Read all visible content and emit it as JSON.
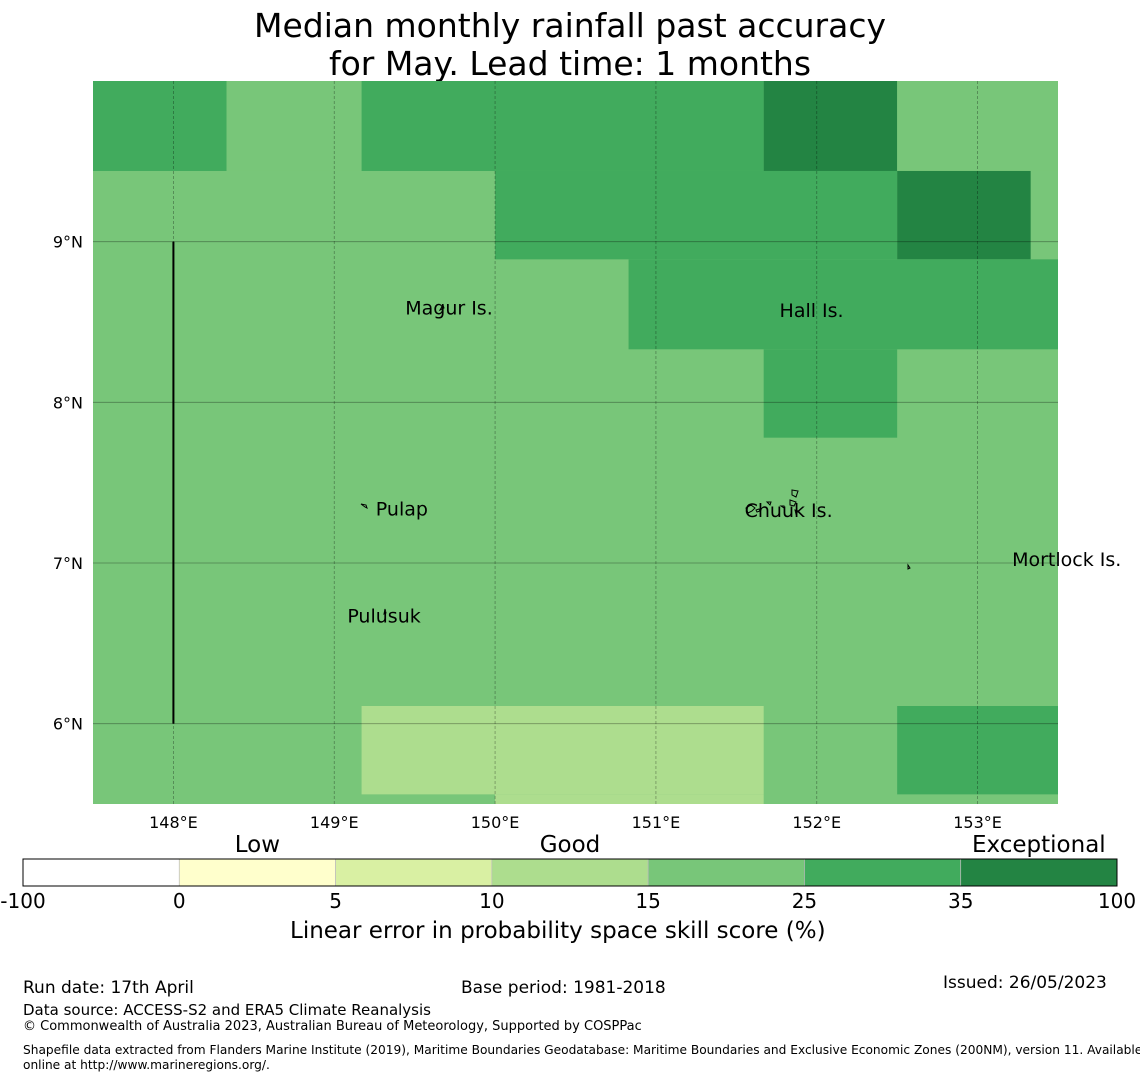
{
  "title": {
    "line1": "Median monthly rainfall past accuracy",
    "line2": "for May. Lead time: 1 months"
  },
  "map": {
    "lon_range": [
      147.5,
      153.5
    ],
    "lat_range": [
      5.5,
      10.0
    ],
    "lon_ticks": [
      148,
      149,
      150,
      151,
      152,
      153
    ],
    "lon_tick_labels": [
      "148°E",
      "149°E",
      "150°E",
      "151°E",
      "152°E",
      "153°E"
    ],
    "lat_ticks": [
      9,
      8,
      7,
      6
    ],
    "lat_tick_labels": [
      "9°N",
      "8°N",
      "7°N",
      "6°N"
    ],
    "grid": true,
    "boundary_line": {
      "lon": 148.0,
      "lat_from": 6.0,
      "lat_to": 9.0
    },
    "places": [
      {
        "name": "Magur Is.",
        "lon": 149.69,
        "lat": 8.56
      },
      {
        "name": "Hall Is.",
        "lon": 151.98,
        "lat": 8.52
      },
      {
        "name": "Pulap",
        "lon": 149.42,
        "lat": 7.29
      },
      {
        "name": "Chuuk Is.",
        "lon": 151.85,
        "lat": 7.31
      },
      {
        "name": "Mortlock Is.",
        "lon": 153.6,
        "lat": 6.98
      },
      {
        "name": "Pulusuk",
        "lon": 149.33,
        "lat": 6.63
      }
    ],
    "skill_cells": [
      {
        "lon0": 147.5,
        "lon1": 148.33,
        "lat0": 9.44,
        "lat1": 10.0,
        "category": 5
      },
      {
        "lon0": 148.33,
        "lon1": 149.17,
        "lat0": 9.44,
        "lat1": 10.0,
        "category": 4
      },
      {
        "lon0": 149.17,
        "lon1": 150.0,
        "lat0": 9.44,
        "lat1": 10.0,
        "category": 5
      },
      {
        "lon0": 150.0,
        "lon1": 151.67,
        "lat0": 9.44,
        "lat1": 10.0,
        "category": 5
      },
      {
        "lon0": 151.67,
        "lon1": 152.5,
        "lat0": 9.44,
        "lat1": 10.0,
        "category": 6
      },
      {
        "lon0": 152.5,
        "lon1": 153.5,
        "lat0": 9.44,
        "lat1": 10.0,
        "category": 4
      },
      {
        "lon0": 150.0,
        "lon1": 152.5,
        "lat0": 8.89,
        "lat1": 9.44,
        "category": 5
      },
      {
        "lon0": 152.5,
        "lon1": 153.33,
        "lat0": 8.89,
        "lat1": 9.44,
        "category": 6
      },
      {
        "lon0": 150.83,
        "lon1": 153.5,
        "lat0": 8.33,
        "lat1": 8.89,
        "category": 5
      },
      {
        "lon0": 151.67,
        "lon1": 152.5,
        "lat0": 7.78,
        "lat1": 8.33,
        "category": 5
      },
      {
        "lon0": 149.17,
        "lon1": 151.67,
        "lat0": 5.56,
        "lat1": 6.11,
        "category": 3
      },
      {
        "lon0": 150.0,
        "lon1": 151.67,
        "lat0": 5.5,
        "lat1": 5.56,
        "category": 3
      },
      {
        "lon0": 152.5,
        "lon1": 153.5,
        "lat0": 5.56,
        "lat1": 6.11,
        "category": 5
      }
    ],
    "background_category": 4
  },
  "chart_data": {
    "type": "heatmap",
    "title": "Median monthly rainfall past accuracy for May. Lead time: 1 months",
    "xlabel": "",
    "ylabel": "",
    "colorbar": {
      "label": "Linear error in probability space skill score (%)",
      "bounds": [
        -100,
        0,
        5,
        10,
        15,
        25,
        35,
        100
      ],
      "tick_labels": [
        "-100",
        "0",
        "5",
        "10",
        "15",
        "25",
        "35",
        "100"
      ],
      "colors": [
        "#ffffff",
        "#ffffcc",
        "#d9f0a3",
        "#addd8e",
        "#78c679",
        "#41ab5d",
        "#238443"
      ],
      "categories": [
        {
          "label": "Low",
          "at": 0
        },
        {
          "label": "Good",
          "at": 10
        },
        {
          "label": "Exceptional",
          "at": 35
        }
      ]
    }
  },
  "footer": {
    "run_date": "Run date: 17th April",
    "base_period": "Base period: 1981-2018",
    "issued": "Issued: 26/05/2023",
    "data_source": "Data source: ACCESS-S2 and ERA5 Climate Reanalysis",
    "copyright": "© Commonwealth of Australia 2023, Australian Bureau of Meteorology, Supported by COSPPac",
    "shapefile_line1": "Shapefile data extracted from Flanders Marine Institute (2019), Maritime Boundaries Geodatabase: Maritime Boundaries and Exclusive Economic Zones (200NM), version 11. Available",
    "shapefile_line2": "online at http://www.marineregions.org/."
  }
}
